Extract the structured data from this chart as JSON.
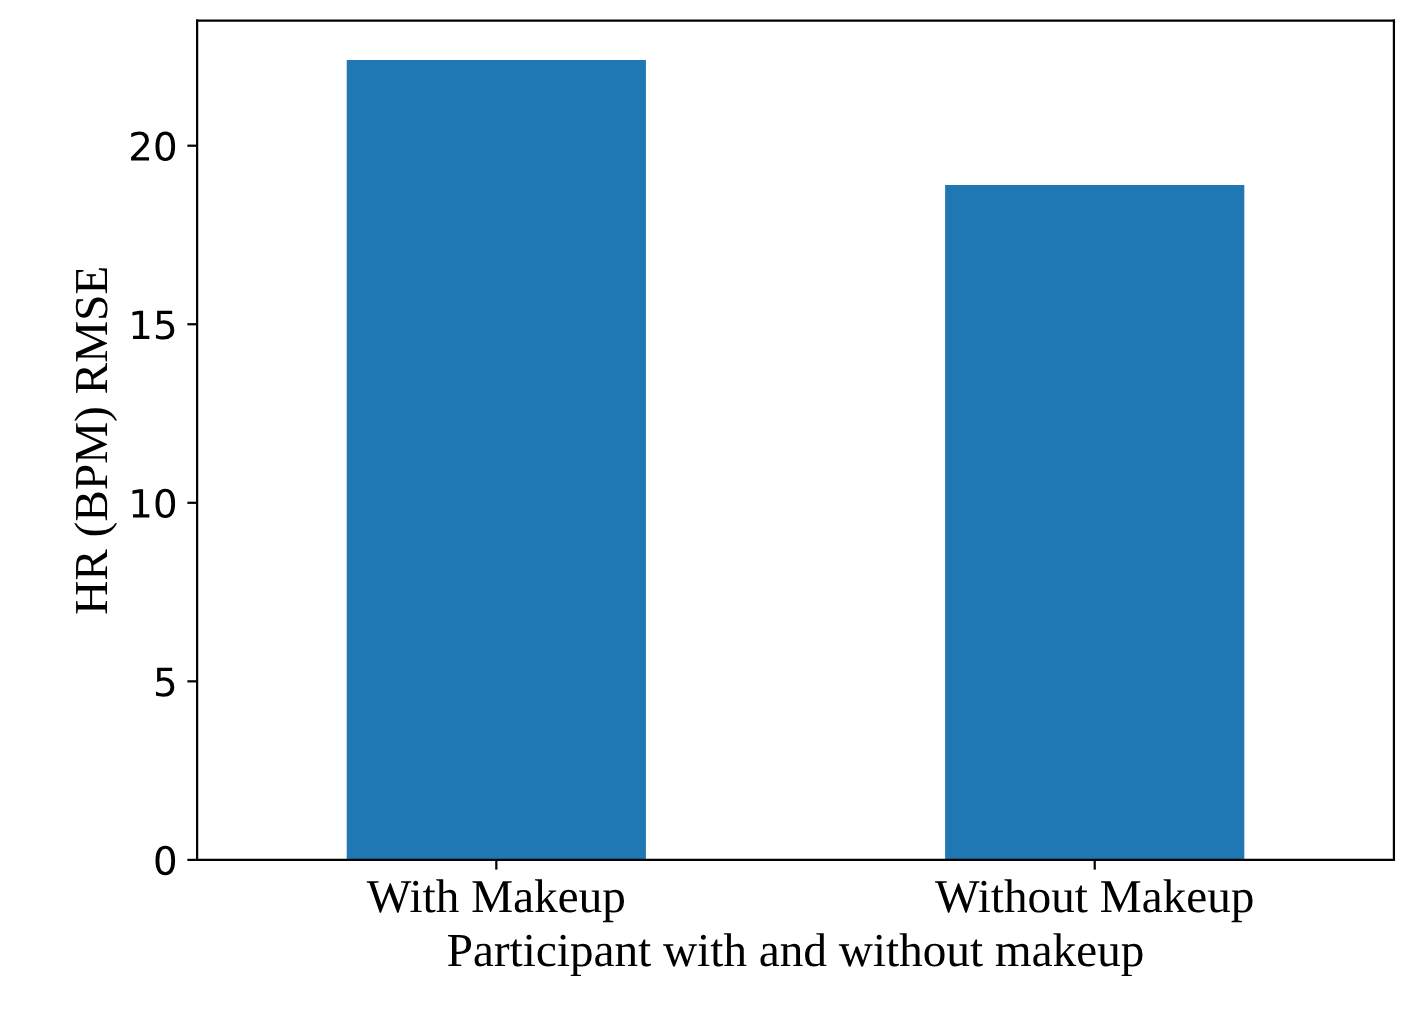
{
  "chart_data": {
    "type": "bar",
    "xlabel": "Participant with and without makeup",
    "ylabel": "HR (BPM) RMSE",
    "categories": [
      "With Makeup",
      "Without Makeup"
    ],
    "values": [
      22.4,
      18.9
    ],
    "color": "#1f77b4",
    "ylim": [
      0,
      23.5
    ],
    "yticks": [
      0,
      5,
      10,
      15,
      20
    ],
    "grid": false,
    "legend": false
  }
}
